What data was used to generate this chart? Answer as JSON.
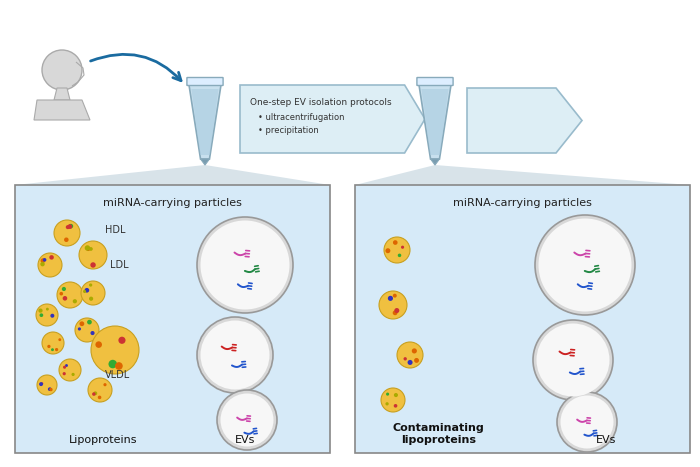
{
  "bg_color": "#ffffff",
  "panel_bg": "#d6eaf8",
  "panel_border": "#aaaaaa",
  "arrow_fc": "#ddeef5",
  "arrow_ec": "#99bbcc",
  "tube_fill": "#c8e0ee",
  "tube_lines": "#88aabb",
  "tube_pellet": "#7a9db0",
  "lipo_color": "#f0c040",
  "lipo_edge": "#c8a020",
  "ev_outer": "#bbbbbb",
  "ev_fill": "#f5f5f5",
  "text_dark": "#333333",
  "mirna_pink": "#cc44aa",
  "mirna_green": "#228844",
  "mirna_blue": "#2255cc",
  "mirna_red": "#cc2222",
  "panel1_title": "miRNA-carrying particles",
  "panel2_title": "miRNA-carrying particles",
  "p1_label_lipo": "Lipoproteins",
  "p1_label_ev": "EVs",
  "p2_label_lipo": "Contaminating\nlipoproteins",
  "p2_label_ev": "EVs",
  "arrow_title": "One-step EV isolation protocols",
  "bullet1": "ultracentrifugation",
  "bullet2": "precipitation",
  "hdl": "HDL",
  "ldl": "LDL",
  "vldl": "VLDL"
}
